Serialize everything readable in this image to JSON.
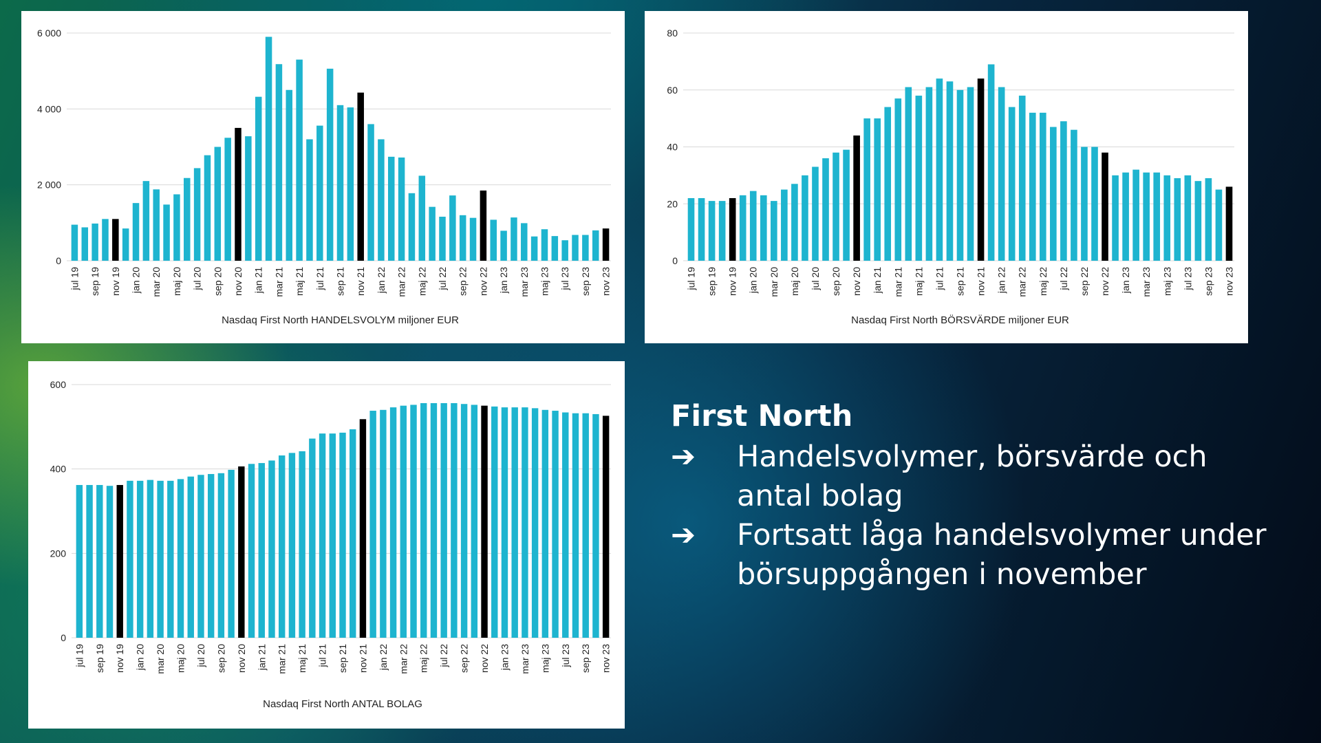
{
  "colors": {
    "bar": "#1eb4cf",
    "highlight": "#000000",
    "grid": "#d8d8d8",
    "text": "#222222"
  },
  "chart_data": [
    {
      "type": "bar",
      "xlabel": "Nasdaq First North HANDELSVOLYM miljoner EUR",
      "ylabel": "",
      "ylim": [
        0,
        6000
      ],
      "yticks": [
        0,
        2000,
        4000,
        6000
      ],
      "ytick_labels": [
        "0",
        "2 000",
        "4 000",
        "6 000"
      ],
      "grid": true,
      "x_tick_labels": [
        "jul 19",
        "sep 19",
        "nov 19",
        "jan 20",
        "mar 20",
        "maj 20",
        "jul 20",
        "sep 20",
        "nov 20",
        "jan 21",
        "mar 21",
        "maj 21",
        "jul 21",
        "sep 21",
        "nov 21",
        "jan 22",
        "mar 22",
        "maj 22",
        "jul 22",
        "sep 22",
        "nov 22",
        "jan 23",
        "mar 23",
        "maj 23",
        "jul 23",
        "sep 23",
        "nov 23"
      ],
      "categories": [
        "jul 19",
        "aug 19",
        "sep 19",
        "okt 19",
        "nov 19",
        "dec 19",
        "jan 20",
        "feb 20",
        "mar 20",
        "apr 20",
        "maj 20",
        "jun 20",
        "jul 20",
        "aug 20",
        "sep 20",
        "okt 20",
        "nov 20",
        "dec 20",
        "jan 21",
        "feb 21",
        "mar 21",
        "apr 21",
        "maj 21",
        "jun 21",
        "jul 21",
        "aug 21",
        "sep 21",
        "okt 21",
        "nov 21",
        "dec 21",
        "jan 22",
        "feb 22",
        "mar 22",
        "apr 22",
        "maj 22",
        "jun 22",
        "jul 22",
        "aug 22",
        "sep 22",
        "okt 22",
        "nov 22",
        "dec 22",
        "jan 23",
        "feb 23",
        "mar 23",
        "apr 23",
        "maj 23",
        "jun 23",
        "jul 23",
        "aug 23",
        "sep 23",
        "okt 23",
        "nov 23"
      ],
      "values": [
        950,
        880,
        980,
        1100,
        1100,
        850,
        1520,
        2100,
        1880,
        1480,
        1750,
        2180,
        2440,
        2780,
        3000,
        3240,
        3500,
        3280,
        4320,
        5900,
        5180,
        4500,
        5300,
        3200,
        3560,
        5060,
        4100,
        4040,
        4430,
        3600,
        3200,
        2740,
        2720,
        1780,
        2240,
        1420,
        1160,
        1720,
        1200,
        1130,
        1850,
        1080,
        790,
        1140,
        990,
        640,
        830,
        650,
        540,
        680,
        680,
        800,
        850
      ],
      "highlight": [
        4,
        16,
        28,
        40,
        52
      ]
    },
    {
      "type": "bar",
      "xlabel": "Nasdaq First North BÖRSVÄRDE miljoner EUR",
      "ylabel": "",
      "ylim": [
        0,
        80
      ],
      "yticks": [
        0,
        20,
        40,
        60,
        80
      ],
      "ytick_labels": [
        "0",
        "20",
        "40",
        "60",
        "80"
      ],
      "grid": true,
      "x_tick_labels": [
        "jul 19",
        "sep 19",
        "nov 19",
        "jan 20",
        "mar 20",
        "maj 20",
        "jul 20",
        "sep 20",
        "nov 20",
        "jan 21",
        "mar 21",
        "maj 21",
        "jul 21",
        "sep 21",
        "nov 21",
        "jan 22",
        "mar 22",
        "maj 22",
        "jul 22",
        "sep 22",
        "nov 22",
        "jan 23",
        "mar 23",
        "maj 23",
        "jul 23",
        "sep 23",
        "nov 23"
      ],
      "categories": [
        "jul 19",
        "aug 19",
        "sep 19",
        "okt 19",
        "nov 19",
        "dec 19",
        "jan 20",
        "feb 20",
        "mar 20",
        "apr 20",
        "maj 20",
        "jun 20",
        "jul 20",
        "aug 20",
        "sep 20",
        "okt 20",
        "nov 20",
        "dec 20",
        "jan 21",
        "feb 21",
        "mar 21",
        "apr 21",
        "maj 21",
        "jun 21",
        "jul 21",
        "aug 21",
        "sep 21",
        "okt 21",
        "nov 21",
        "dec 21",
        "jan 22",
        "feb 22",
        "mar 22",
        "apr 22",
        "maj 22",
        "jun 22",
        "jul 22",
        "aug 22",
        "sep 22",
        "okt 22",
        "nov 22",
        "dec 22",
        "jan 23",
        "feb 23",
        "mar 23",
        "apr 23",
        "maj 23",
        "jun 23",
        "jul 23",
        "aug 23",
        "sep 23",
        "okt 23",
        "nov 23"
      ],
      "values": [
        22,
        22,
        21,
        21,
        22,
        23,
        24.5,
        23,
        21,
        25,
        27,
        30,
        33,
        36,
        38,
        39,
        44,
        50,
        50,
        54,
        57,
        61,
        58,
        61,
        64,
        63,
        60,
        61,
        64,
        69,
        61,
        54,
        58,
        52,
        52,
        47,
        49,
        46,
        40,
        40,
        38,
        30,
        31,
        32,
        31,
        31,
        30,
        29,
        30,
        28,
        29,
        25,
        26
      ],
      "highlight": [
        4,
        16,
        28,
        40,
        52
      ]
    },
    {
      "type": "bar",
      "xlabel": "Nasdaq First North ANTAL BOLAG",
      "ylabel": "",
      "ylim": [
        0,
        600
      ],
      "yticks": [
        0,
        200,
        400,
        600
      ],
      "ytick_labels": [
        "0",
        "200",
        "400",
        "600"
      ],
      "grid": true,
      "x_tick_labels": [
        "jul 19",
        "sep 19",
        "nov 19",
        "jan 20",
        "mar 20",
        "maj 20",
        "jul 20",
        "sep 20",
        "nov 20",
        "jan 21",
        "mar 21",
        "maj 21",
        "jul 21",
        "sep 21",
        "nov 21",
        "jan 22",
        "mar 22",
        "maj 22",
        "jul 22",
        "sep 22",
        "nov 22",
        "jan 23",
        "mar 23",
        "maj 23",
        "jul 23",
        "sep 23",
        "nov 23"
      ],
      "categories": [
        "jul 19",
        "aug 19",
        "sep 19",
        "okt 19",
        "nov 19",
        "dec 19",
        "jan 20",
        "feb 20",
        "mar 20",
        "apr 20",
        "maj 20",
        "jun 20",
        "jul 20",
        "aug 20",
        "sep 20",
        "okt 20",
        "nov 20",
        "dec 20",
        "jan 21",
        "feb 21",
        "mar 21",
        "apr 21",
        "maj 21",
        "jun 21",
        "jul 21",
        "aug 21",
        "sep 21",
        "okt 21",
        "nov 21",
        "dec 21",
        "jan 22",
        "feb 22",
        "mar 22",
        "apr 22",
        "maj 22",
        "jun 22",
        "jul 22",
        "aug 22",
        "sep 22",
        "okt 22",
        "nov 22",
        "dec 22",
        "jan 23",
        "feb 23",
        "mar 23",
        "apr 23",
        "maj 23",
        "jun 23",
        "jul 23",
        "aug 23",
        "sep 23",
        "okt 23",
        "nov 23"
      ],
      "values": [
        362,
        362,
        362,
        360,
        362,
        372,
        372,
        374,
        372,
        372,
        376,
        382,
        386,
        388,
        390,
        398,
        406,
        412,
        414,
        420,
        432,
        438,
        442,
        472,
        484,
        484,
        486,
        494,
        518,
        538,
        540,
        546,
        550,
        552,
        556,
        556,
        556,
        556,
        554,
        552,
        550,
        548,
        546,
        546,
        546,
        544,
        540,
        538,
        534,
        532,
        532,
        530,
        526
      ],
      "highlight": [
        4,
        16,
        28,
        40,
        52
      ]
    }
  ],
  "slide": {
    "heading": "First North",
    "bullets": [
      {
        "arrow": "➔",
        "text": "Handelsvolymer, börsvärde och antal bolag"
      },
      {
        "arrow": "➔",
        "text": "Fortsatt låga handelsvolymer under börsuppgången i november"
      }
    ]
  }
}
